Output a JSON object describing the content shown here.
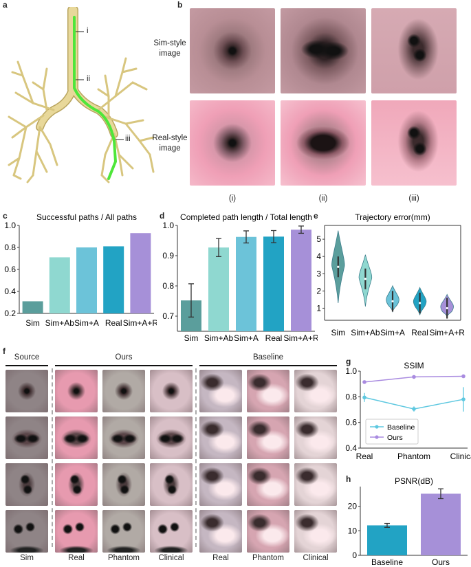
{
  "panel_letters": [
    "a",
    "b",
    "c",
    "d",
    "e",
    "f",
    "g",
    "h"
  ],
  "panel_a": {
    "markers": [
      "i",
      "ii",
      "iii"
    ]
  },
  "panel_b": {
    "row_labels": [
      "Sim-style\nimage",
      "Real-style\nimage"
    ],
    "col_labels": [
      "(i)",
      "(ii)",
      "(iii)"
    ]
  },
  "panel_f": {
    "group_labels": [
      "Source",
      "Ours",
      "Baseline"
    ],
    "col_labels": [
      "Sim",
      "Real",
      "Phantom",
      "Clinical",
      "Real",
      "Phantom",
      "Clinical"
    ]
  },
  "colors": {
    "Sim": "#5b9e9c",
    "Sim+Ab": "#8fd8d0",
    "Sim+A": "#6cc3d9",
    "Real": "#22a3c4",
    "Sim+A+R": "#a690d8",
    "baseline_line": "#5ec8e0",
    "ours_line": "#a98be0",
    "centerline": "#4fe63a",
    "airway": "#e8d89a"
  },
  "chart_data": [
    {
      "id": "c",
      "type": "bar",
      "title": "Successful paths / All paths",
      "categories": [
        "Sim",
        "Sim+Ab",
        "Sim+A",
        "Real",
        "Sim+A+R"
      ],
      "values": [
        0.31,
        0.71,
        0.8,
        0.81,
        0.93
      ],
      "ylim": [
        0.2,
        1.0
      ],
      "yticks": [
        "0.2",
        "0.4",
        "0.6",
        "0.8",
        "1.0"
      ]
    },
    {
      "id": "d",
      "type": "bar",
      "title": "Completed path length / Total length",
      "categories": [
        "Sim",
        "Sim+Ab",
        "Sim+A",
        "Real",
        "Sim+A+R"
      ],
      "values": [
        0.752,
        0.927,
        0.962,
        0.963,
        0.986
      ],
      "errors": [
        0.055,
        0.03,
        0.02,
        0.02,
        0.012
      ],
      "ylim": [
        0.65,
        1.0
      ],
      "yticks": [
        "0.7",
        "0.8",
        "0.9",
        "1.0"
      ]
    },
    {
      "id": "e",
      "type": "violin",
      "title": "Trajectory error(mm)",
      "categories": [
        "Sim",
        "Sim+Ab",
        "Sim+A",
        "Real",
        "Sim+A+R"
      ],
      "medians": [
        3.4,
        2.7,
        1.4,
        1.3,
        1.0
      ],
      "ranges": [
        [
          1.3,
          5.5
        ],
        [
          1.1,
          4.1
        ],
        [
          0.8,
          2.3
        ],
        [
          0.6,
          2.2
        ],
        [
          0.5,
          1.8
        ]
      ],
      "ylim": [
        0.3,
        5.8
      ],
      "yticks": [
        "1",
        "2",
        "3",
        "4",
        "5"
      ]
    },
    {
      "id": "g",
      "type": "line",
      "title": "SSIM",
      "categories": [
        "Real",
        "Phantom",
        "Clinical"
      ],
      "series": [
        {
          "name": "Baseline",
          "values": [
            0.795,
            0.705,
            0.78
          ],
          "errors": [
            0.035,
            0.02,
            0.095
          ]
        },
        {
          "name": "Ours",
          "values": [
            0.915,
            0.955,
            0.96
          ],
          "errors": [
            0.01,
            0.005,
            0.005
          ]
        }
      ],
      "ylim": [
        0.4,
        1.0
      ],
      "yticks": [
        "0.4",
        "0.6",
        "0.8",
        "1.0"
      ]
    },
    {
      "id": "h",
      "type": "bar",
      "title": "PSNR(dB)",
      "categories": [
        "Baseline",
        "Ours"
      ],
      "values": [
        12.2,
        25.1
      ],
      "errors": [
        0.8,
        2.0
      ],
      "ylim": [
        0,
        28
      ],
      "yticks": [
        "0",
        "10",
        "20"
      ]
    }
  ]
}
